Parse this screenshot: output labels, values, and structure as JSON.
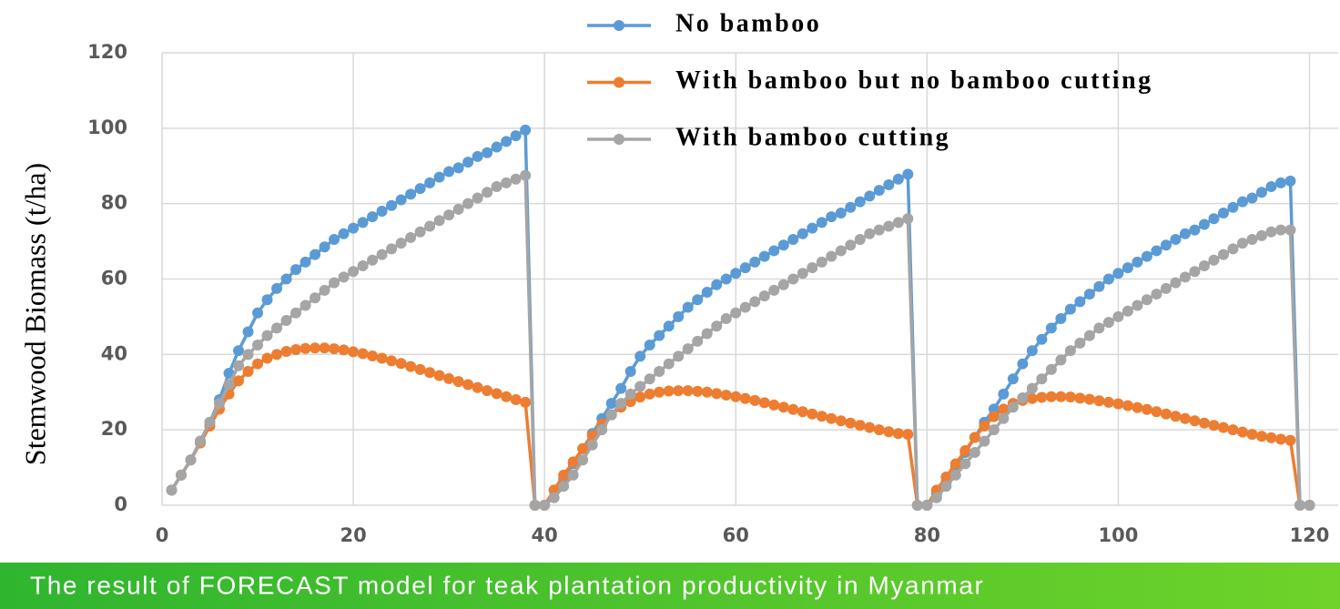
{
  "chart_data": {
    "type": "line",
    "caption": "The result of FORECAST model for teak plantation productivity in Myanmar",
    "y_label": "Stemwood Biomass (t/ha)",
    "x": [
      1,
      2,
      3,
      4,
      5,
      6,
      7,
      8,
      9,
      10,
      11,
      12,
      13,
      14,
      15,
      16,
      17,
      18,
      19,
      20,
      21,
      22,
      23,
      24,
      25,
      26,
      27,
      28,
      29,
      30,
      31,
      32,
      33,
      34,
      35,
      36,
      37,
      38,
      39,
      40,
      41,
      42,
      43,
      44,
      45,
      46,
      47,
      48,
      49,
      50,
      51,
      52,
      53,
      54,
      55,
      56,
      57,
      58,
      59,
      60,
      61,
      62,
      63,
      64,
      65,
      66,
      67,
      68,
      69,
      70,
      71,
      72,
      73,
      74,
      75,
      76,
      77,
      78,
      79,
      80,
      81,
      82,
      83,
      84,
      85,
      86,
      87,
      88,
      89,
      90,
      91,
      92,
      93,
      94,
      95,
      96,
      97,
      98,
      99,
      100,
      101,
      102,
      103,
      104,
      105,
      106,
      107,
      108,
      109,
      110,
      111,
      112,
      113,
      114,
      115,
      116,
      117,
      118,
      119,
      120
    ],
    "series": [
      {
        "name": "No bamboo",
        "color": "#5b9bd5",
        "values": [
          4,
          8,
          12,
          17,
          22,
          28,
          35,
          41,
          46,
          51,
          54.5,
          57.5,
          60,
          62.5,
          64.5,
          66.5,
          68.5,
          70.5,
          72,
          73.5,
          75,
          76.5,
          78,
          79.5,
          81,
          82.5,
          84,
          85.5,
          87,
          88.5,
          89.5,
          91,
          92.5,
          93.5,
          95,
          96.5,
          98,
          99.5,
          0,
          0,
          4,
          7,
          11,
          15,
          19,
          23,
          27,
          31,
          35.5,
          39.5,
          42.5,
          45,
          47.5,
          50,
          52.5,
          54.5,
          56.5,
          58.5,
          60,
          61.5,
          63,
          64.5,
          66,
          67.5,
          69,
          70.5,
          72,
          73.5,
          75,
          76.5,
          77.5,
          79,
          80.5,
          82,
          83.5,
          85,
          86.5,
          87.8,
          0,
          0,
          3,
          6,
          10,
          14,
          18,
          22,
          25.5,
          29.5,
          33.5,
          37.5,
          41,
          44,
          47,
          49.5,
          52,
          54,
          56,
          58,
          60,
          61.5,
          63,
          64.5,
          66,
          67.5,
          69,
          70.5,
          72,
          73,
          74.5,
          76,
          77.5,
          79,
          80.5,
          81.5,
          83,
          84.5,
          85.5,
          86,
          0,
          0
        ]
      },
      {
        "name": "With bamboo but no bamboo cutting",
        "color": "#ed7d31",
        "values": [
          4,
          8,
          12,
          16.5,
          21,
          25.5,
          29.5,
          33,
          35.5,
          37.5,
          39,
          40,
          40.8,
          41.3,
          41.6,
          41.7,
          41.7,
          41.5,
          41.2,
          40.7,
          40.2,
          39.6,
          39,
          38.3,
          37.6,
          36.8,
          36,
          35.2,
          34.4,
          33.6,
          32.8,
          32,
          31.2,
          30.4,
          29.6,
          28.8,
          28,
          27.3,
          0,
          0,
          4,
          8,
          11.5,
          15,
          18.5,
          21.5,
          24,
          26,
          27.5,
          28.7,
          29.5,
          30,
          30.3,
          30.4,
          30.4,
          30.2,
          30,
          29.6,
          29.2,
          28.8,
          28.3,
          27.8,
          27.2,
          26.6,
          26,
          25.4,
          24.8,
          24.2,
          23.6,
          23,
          22.4,
          21.8,
          21.2,
          20.6,
          20,
          19.5,
          19,
          18.8,
          0,
          0,
          4,
          7.5,
          11,
          14.5,
          18,
          21,
          23.5,
          25.5,
          27,
          27.8,
          28.3,
          28.6,
          28.8,
          28.8,
          28.7,
          28.4,
          28.1,
          27.7,
          27.3,
          26.9,
          26.4,
          25.9,
          25.4,
          24.8,
          24.2,
          23.6,
          23,
          22.4,
          21.8,
          21.2,
          20.6,
          20,
          19.4,
          18.8,
          18.3,
          17.9,
          17.5,
          17.2,
          0,
          0
        ]
      },
      {
        "name": "With bamboo cutting",
        "color": "#a5a5a5",
        "values": [
          4,
          8,
          12,
          17,
          22,
          27,
          32,
          37,
          40,
          42.5,
          45,
          47,
          49,
          51,
          53,
          55,
          57,
          59,
          60.5,
          62,
          63.5,
          65,
          66.5,
          68,
          69.5,
          71,
          72.5,
          74,
          75.5,
          77,
          78.5,
          80,
          81.5,
          83,
          84.5,
          85.5,
          86.5,
          87.5,
          0,
          0,
          2,
          5,
          8,
          12,
          16,
          20,
          24,
          27,
          29.5,
          31.5,
          33.5,
          35.5,
          37.5,
          39.5,
          41.5,
          43.5,
          45.5,
          47.5,
          49.5,
          51,
          52.5,
          54,
          55.5,
          57,
          58.5,
          60,
          61.5,
          63,
          64.5,
          66,
          67.5,
          69,
          70.5,
          72,
          73,
          74,
          75,
          76,
          0,
          0,
          2,
          5,
          8,
          11,
          14,
          17,
          20,
          23,
          26,
          28.5,
          31,
          33.5,
          36,
          38.5,
          41,
          43,
          45,
          47,
          48.5,
          50,
          51.5,
          53,
          54.5,
          56,
          57.5,
          59,
          60.5,
          62,
          63.5,
          65,
          66.5,
          68,
          69.5,
          70.5,
          71.5,
          72.5,
          73,
          73,
          0,
          0
        ]
      }
    ],
    "xlim": [
      0,
      123
    ],
    "xticks": [
      0,
      20,
      40,
      60,
      80,
      100,
      120
    ],
    "ylim": [
      0,
      120
    ],
    "yticks": [
      0,
      20,
      40,
      60,
      80,
      100,
      120
    ],
    "grid": true
  }
}
